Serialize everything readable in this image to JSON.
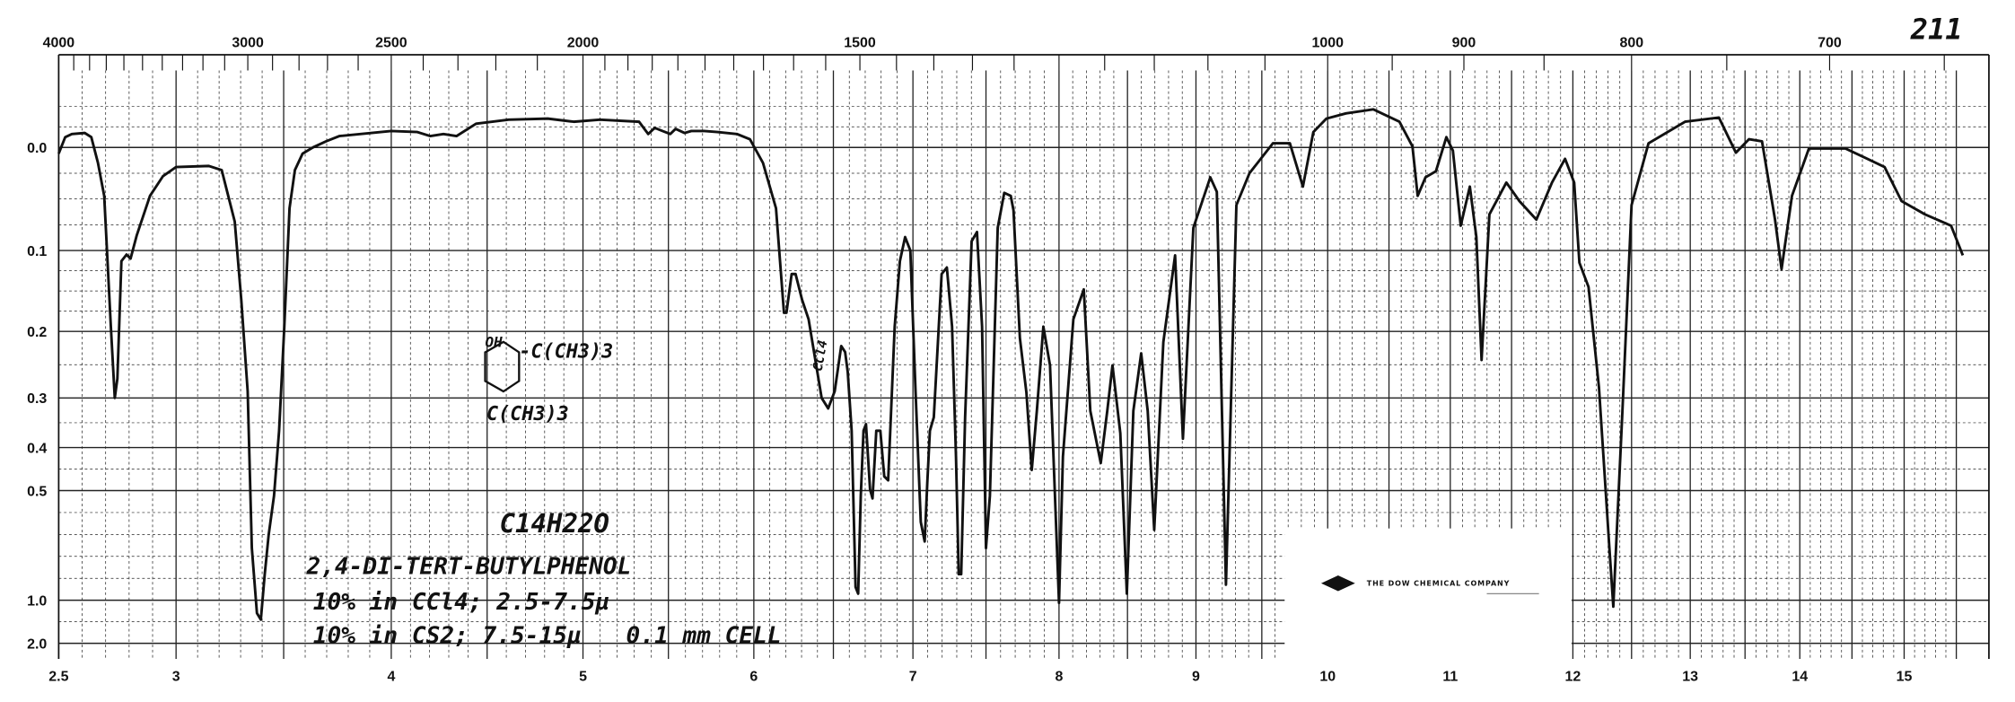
{
  "page_number": "211",
  "chart_data": {
    "type": "line",
    "title": "",
    "xlabel": "",
    "ylabel": "",
    "x_unit_bottom": "microns",
    "x_unit_top": "wavenumber (cm-1)",
    "y_scale": "absorbance (nonlinear chart paper)",
    "xlim": [
      2.5,
      15.6
    ],
    "ylim": [
      -0.04,
      2.0
    ],
    "grid": true,
    "x_ticks": [
      "2.5",
      "3",
      "4",
      "5",
      "6",
      "7",
      "8",
      "9",
      "10",
      "11",
      "12",
      "13",
      "14",
      "15"
    ],
    "x_tick_values": [
      2.5,
      3,
      4,
      5,
      6,
      7,
      8,
      9,
      10,
      11,
      12,
      13,
      14,
      15
    ],
    "top_ticks": [
      "4000",
      "3000",
      "2500",
      "2000",
      "1500",
      "1000",
      "900",
      "800",
      "700"
    ],
    "top_tick_values": [
      4000,
      3000,
      2500,
      2000,
      1500,
      1000,
      900,
      800,
      700
    ],
    "y_ticks": [
      "0.0",
      "0.1",
      "0.2",
      "0.3",
      "0.4",
      "0.5",
      "1.0",
      "2.0"
    ],
    "y_tick_values": [
      0,
      0.1,
      0.2,
      0.3,
      0.4,
      0.5,
      1.0,
      2.0
    ],
    "line_color": "#111111",
    "series": [
      {
        "points": [
          [
            2.5,
            0.006
          ],
          [
            2.528,
            -0.01
          ],
          [
            2.556,
            -0.013
          ],
          [
            2.611,
            -0.014
          ],
          [
            2.639,
            -0.01
          ],
          [
            2.667,
            0.015
          ],
          [
            2.694,
            0.047
          ],
          [
            2.722,
            0.194
          ],
          [
            2.739,
            0.3
          ],
          [
            2.75,
            0.271
          ],
          [
            2.767,
            0.113
          ],
          [
            2.789,
            0.105
          ],
          [
            2.806,
            0.11
          ],
          [
            2.833,
            0.085
          ],
          [
            2.889,
            0.047
          ],
          [
            2.944,
            0.028
          ],
          [
            3.0,
            0.019
          ],
          [
            3.152,
            0.018
          ],
          [
            3.212,
            0.022
          ],
          [
            3.273,
            0.072
          ],
          [
            3.303,
            0.161
          ],
          [
            3.333,
            0.29
          ],
          [
            3.352,
            0.762
          ],
          [
            3.376,
            1.3
          ],
          [
            3.394,
            1.45
          ],
          [
            3.412,
            0.881
          ],
          [
            3.43,
            0.702
          ],
          [
            3.455,
            0.524
          ],
          [
            3.479,
            0.366
          ],
          [
            3.503,
            0.194
          ],
          [
            3.527,
            0.059
          ],
          [
            3.552,
            0.022
          ],
          [
            3.588,
            0.006
          ],
          [
            3.636,
            0
          ],
          [
            3.697,
            -0.006
          ],
          [
            3.758,
            -0.011
          ],
          [
            4.0,
            -0.016
          ],
          [
            4.136,
            -0.015
          ],
          [
            4.204,
            -0.011
          ],
          [
            4.272,
            -0.013
          ],
          [
            4.34,
            -0.011
          ],
          [
            4.442,
            -0.023
          ],
          [
            4.612,
            -0.027
          ],
          [
            4.816,
            -0.028
          ],
          [
            4.952,
            -0.025
          ],
          [
            5.099,
            -0.027
          ],
          [
            5.328,
            -0.025
          ],
          [
            5.382,
            -0.013
          ],
          [
            5.42,
            -0.019
          ],
          [
            5.466,
            -0.016
          ],
          [
            5.511,
            -0.013
          ],
          [
            5.542,
            -0.018
          ],
          [
            5.595,
            -0.014
          ],
          [
            5.634,
            -0.016
          ],
          [
            5.71,
            -0.016
          ],
          [
            5.786,
            -0.015
          ],
          [
            5.901,
            -0.013
          ],
          [
            5.977,
            -0.008
          ],
          [
            6.057,
            0.015
          ],
          [
            6.139,
            0.059
          ],
          [
            6.189,
            0.177
          ],
          [
            6.205,
            0.177
          ],
          [
            6.238,
            0.129
          ],
          [
            6.262,
            0.129
          ],
          [
            6.303,
            0.161
          ],
          [
            6.344,
            0.185
          ],
          [
            6.385,
            0.241
          ],
          [
            6.426,
            0.3
          ],
          [
            6.467,
            0.321
          ],
          [
            6.508,
            0.29
          ],
          [
            6.549,
            0.222
          ],
          [
            6.574,
            0.231
          ],
          [
            6.59,
            0.261
          ],
          [
            6.615,
            0.366
          ],
          [
            6.639,
            0.94
          ],
          [
            6.656,
            0.97
          ],
          [
            6.672,
            0.524
          ],
          [
            6.689,
            0.366
          ],
          [
            6.705,
            0.353
          ],
          [
            6.73,
            0.497
          ],
          [
            6.746,
            0.536
          ],
          [
            6.77,
            0.366
          ],
          [
            6.795,
            0.366
          ],
          [
            6.82,
            0.467
          ],
          [
            6.844,
            0.476
          ],
          [
            6.885,
            0.194
          ],
          [
            6.918,
            0.113
          ],
          [
            6.951,
            0.087
          ],
          [
            6.984,
            0.1
          ],
          [
            7.018,
            0.29
          ],
          [
            7.054,
            0.643
          ],
          [
            7.08,
            0.732
          ],
          [
            7.098,
            0.482
          ],
          [
            7.116,
            0.366
          ],
          [
            7.143,
            0.339
          ],
          [
            7.196,
            0.129
          ],
          [
            7.232,
            0.121
          ],
          [
            7.268,
            0.194
          ],
          [
            7.295,
            0.421
          ],
          [
            7.313,
            0.881
          ],
          [
            7.33,
            0.881
          ],
          [
            7.357,
            0.339
          ],
          [
            7.402,
            0.091
          ],
          [
            7.438,
            0.082
          ],
          [
            7.473,
            0.194
          ],
          [
            7.5,
            0.762
          ],
          [
            7.527,
            0.524
          ],
          [
            7.58,
            0.078
          ],
          [
            7.625,
            0.044
          ],
          [
            7.67,
            0.047
          ],
          [
            7.688,
            0.061
          ],
          [
            7.732,
            0.21
          ],
          [
            7.777,
            0.292
          ],
          [
            7.813,
            0.452
          ],
          [
            7.848,
            0.326
          ],
          [
            7.893,
            0.194
          ],
          [
            7.938,
            0.251
          ],
          [
            8.0,
            1.06
          ],
          [
            8.029,
            0.421
          ],
          [
            8.105,
            0.185
          ],
          [
            8.181,
            0.148
          ],
          [
            8.229,
            0.326
          ],
          [
            8.305,
            0.436
          ],
          [
            8.352,
            0.326
          ],
          [
            8.39,
            0.251
          ],
          [
            8.448,
            0.371
          ],
          [
            8.495,
            0.97
          ],
          [
            8.543,
            0.326
          ],
          [
            8.6,
            0.233
          ],
          [
            8.648,
            0.326
          ],
          [
            8.695,
            0.679
          ],
          [
            8.762,
            0.216
          ],
          [
            8.848,
            0.106
          ],
          [
            8.905,
            0.382
          ],
          [
            8.981,
            0.078
          ],
          [
            9.109,
            0.029
          ],
          [
            9.158,
            0.043
          ],
          [
            9.228,
            0.929
          ],
          [
            9.307,
            0.056
          ],
          [
            9.406,
            0.025
          ],
          [
            9.584,
            -0.004
          ],
          [
            9.713,
            -0.004
          ],
          [
            9.812,
            0.038
          ],
          [
            9.891,
            -0.015
          ],
          [
            9.99,
            -0.028
          ],
          [
            10.149,
            -0.033
          ],
          [
            10.372,
            -0.037
          ],
          [
            10.585,
            -0.025
          ],
          [
            10.691,
            -0.001
          ],
          [
            10.734,
            0.047
          ],
          [
            10.798,
            0.029
          ],
          [
            10.883,
            0.023
          ],
          [
            10.968,
            -0.01
          ],
          [
            11.021,
            0.003
          ],
          [
            11.085,
            0.076
          ],
          [
            11.16,
            0.038
          ],
          [
            11.213,
            0.087
          ],
          [
            11.255,
            0.243
          ],
          [
            11.319,
            0.065
          ],
          [
            11.457,
            0.034
          ],
          [
            11.564,
            0.052
          ],
          [
            11.702,
            0.07
          ],
          [
            11.83,
            0.034
          ],
          [
            11.936,
            0.011
          ],
          [
            12.011,
            0.034
          ],
          [
            12.056,
            0.115
          ],
          [
            12.133,
            0.145
          ],
          [
            12.222,
            0.284
          ],
          [
            12.311,
            0.762
          ],
          [
            12.344,
            1.15
          ],
          [
            12.422,
            0.326
          ],
          [
            12.5,
            0.056
          ],
          [
            12.644,
            -0.004
          ],
          [
            12.956,
            -0.025
          ],
          [
            13.262,
            -0.029
          ],
          [
            13.417,
            0.005
          ],
          [
            13.536,
            -0.008
          ],
          [
            13.655,
            -0.006
          ],
          [
            13.774,
            0.07
          ],
          [
            13.833,
            0.123
          ],
          [
            13.929,
            0.047
          ],
          [
            14.088,
            0.001
          ],
          [
            14.438,
            0.001
          ],
          [
            14.625,
            0.01
          ],
          [
            14.813,
            0.019
          ],
          [
            14.975,
            0.052
          ],
          [
            15.2,
            0.065
          ],
          [
            15.45,
            0.076
          ],
          [
            15.563,
            0.106
          ]
        ]
      }
    ],
    "annotations": {
      "formula": "C14H22O",
      "compound": "2,4-DI-TERT-BUTYLPHENOL",
      "conditions_1": "10% in CCl4; 2.5-7.5µ",
      "conditions_2": "10% in CS2; 7.5-15µ",
      "cell": "0.1 mm CELL",
      "structure_oh": "OH",
      "structure_sub1": "-C(CH3)3",
      "structure_sub2": "C(CH3)3",
      "solvent_mark": "CCl4"
    }
  },
  "logo": {
    "company": "THE DOW CHEMICAL COMPANY"
  }
}
